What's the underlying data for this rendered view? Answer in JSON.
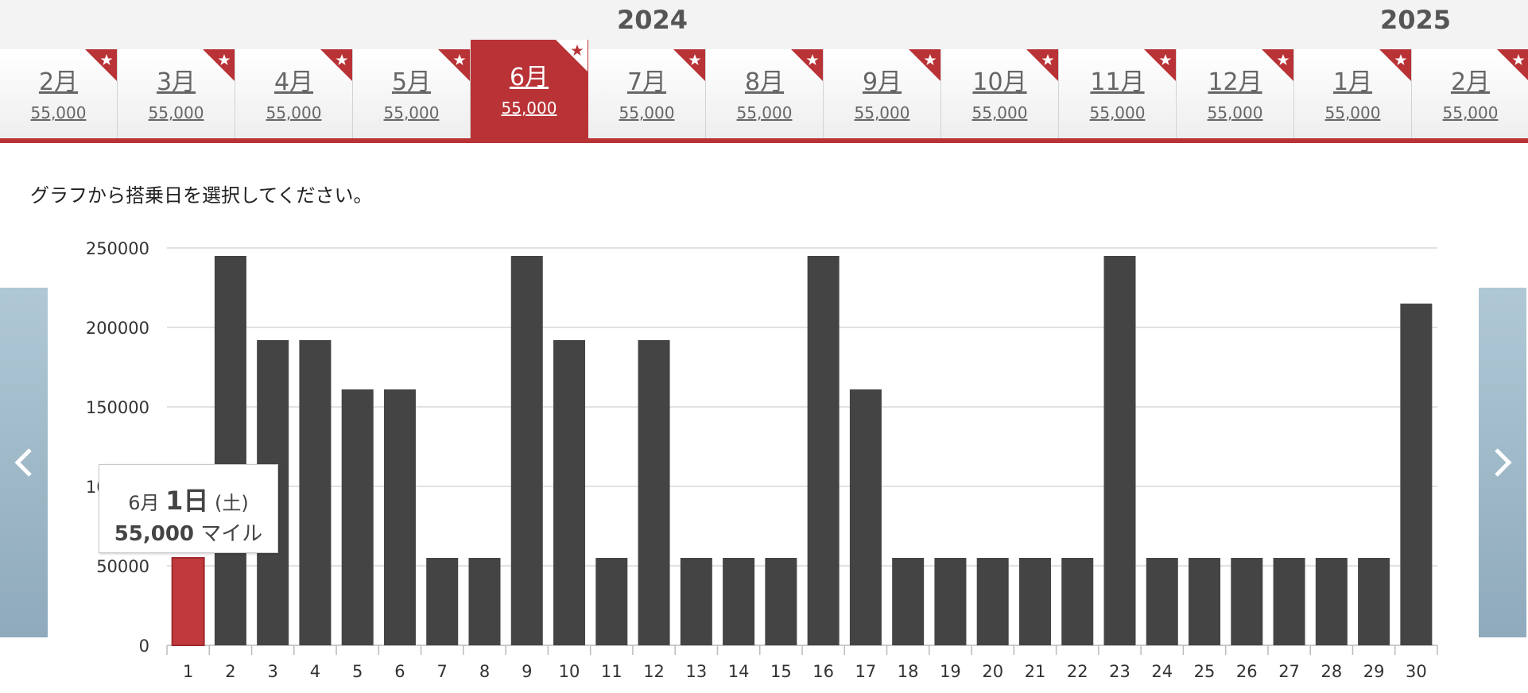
{
  "years": [
    {
      "label": "2024"
    },
    {
      "label": "2025"
    }
  ],
  "months": [
    {
      "month": "2月",
      "price": "55,000"
    },
    {
      "month": "3月",
      "price": "55,000"
    },
    {
      "month": "4月",
      "price": "55,000"
    },
    {
      "month": "5月",
      "price": "55,000"
    },
    {
      "month": "6月",
      "price": "55,000",
      "active": true
    },
    {
      "month": "7月",
      "price": "55,000"
    },
    {
      "month": "8月",
      "price": "55,000"
    },
    {
      "month": "9月",
      "price": "55,000"
    },
    {
      "month": "10月",
      "price": "55,000"
    },
    {
      "month": "11月",
      "price": "55,000"
    },
    {
      "month": "12月",
      "price": "55,000"
    },
    {
      "month": "1月",
      "price": "55,000"
    },
    {
      "month": "2月",
      "price": "55,000"
    }
  ],
  "instruction": "グラフから搭乗日を選択してください。",
  "tooltip": {
    "month": "6月",
    "day": "1日",
    "weekday": "(土)",
    "miles": "55,000",
    "unit": "マイル"
  },
  "colors": {
    "accent": "#b83236",
    "bar": "#444444",
    "selected_bar": "#c0393c",
    "grid": "#d8d8d8",
    "arrow": "#8faabc"
  },
  "icons": {
    "prev": "chevron-left-icon",
    "next": "chevron-right-icon",
    "ribbon": "star-ribbon-icon"
  },
  "chart_data": {
    "type": "bar",
    "categories": [
      "1",
      "2",
      "3",
      "4",
      "5",
      "6",
      "7",
      "8",
      "9",
      "10",
      "11",
      "12",
      "13",
      "14",
      "15",
      "16",
      "17",
      "18",
      "19",
      "20",
      "21",
      "22",
      "23",
      "24",
      "25",
      "26",
      "27",
      "28",
      "29",
      "30"
    ],
    "values": [
      55000,
      245000,
      192000,
      192000,
      161000,
      161000,
      55000,
      55000,
      245000,
      192000,
      55000,
      192000,
      55000,
      55000,
      55000,
      245000,
      161000,
      55000,
      55000,
      55000,
      55000,
      55000,
      245000,
      55000,
      55000,
      55000,
      55000,
      55000,
      55000,
      215000
    ],
    "selected_index": 0,
    "ylim": [
      0,
      250000
    ],
    "yticks": [
      "0",
      "50000",
      "100000",
      "150000",
      "200000",
      "250000"
    ],
    "grid": true
  }
}
